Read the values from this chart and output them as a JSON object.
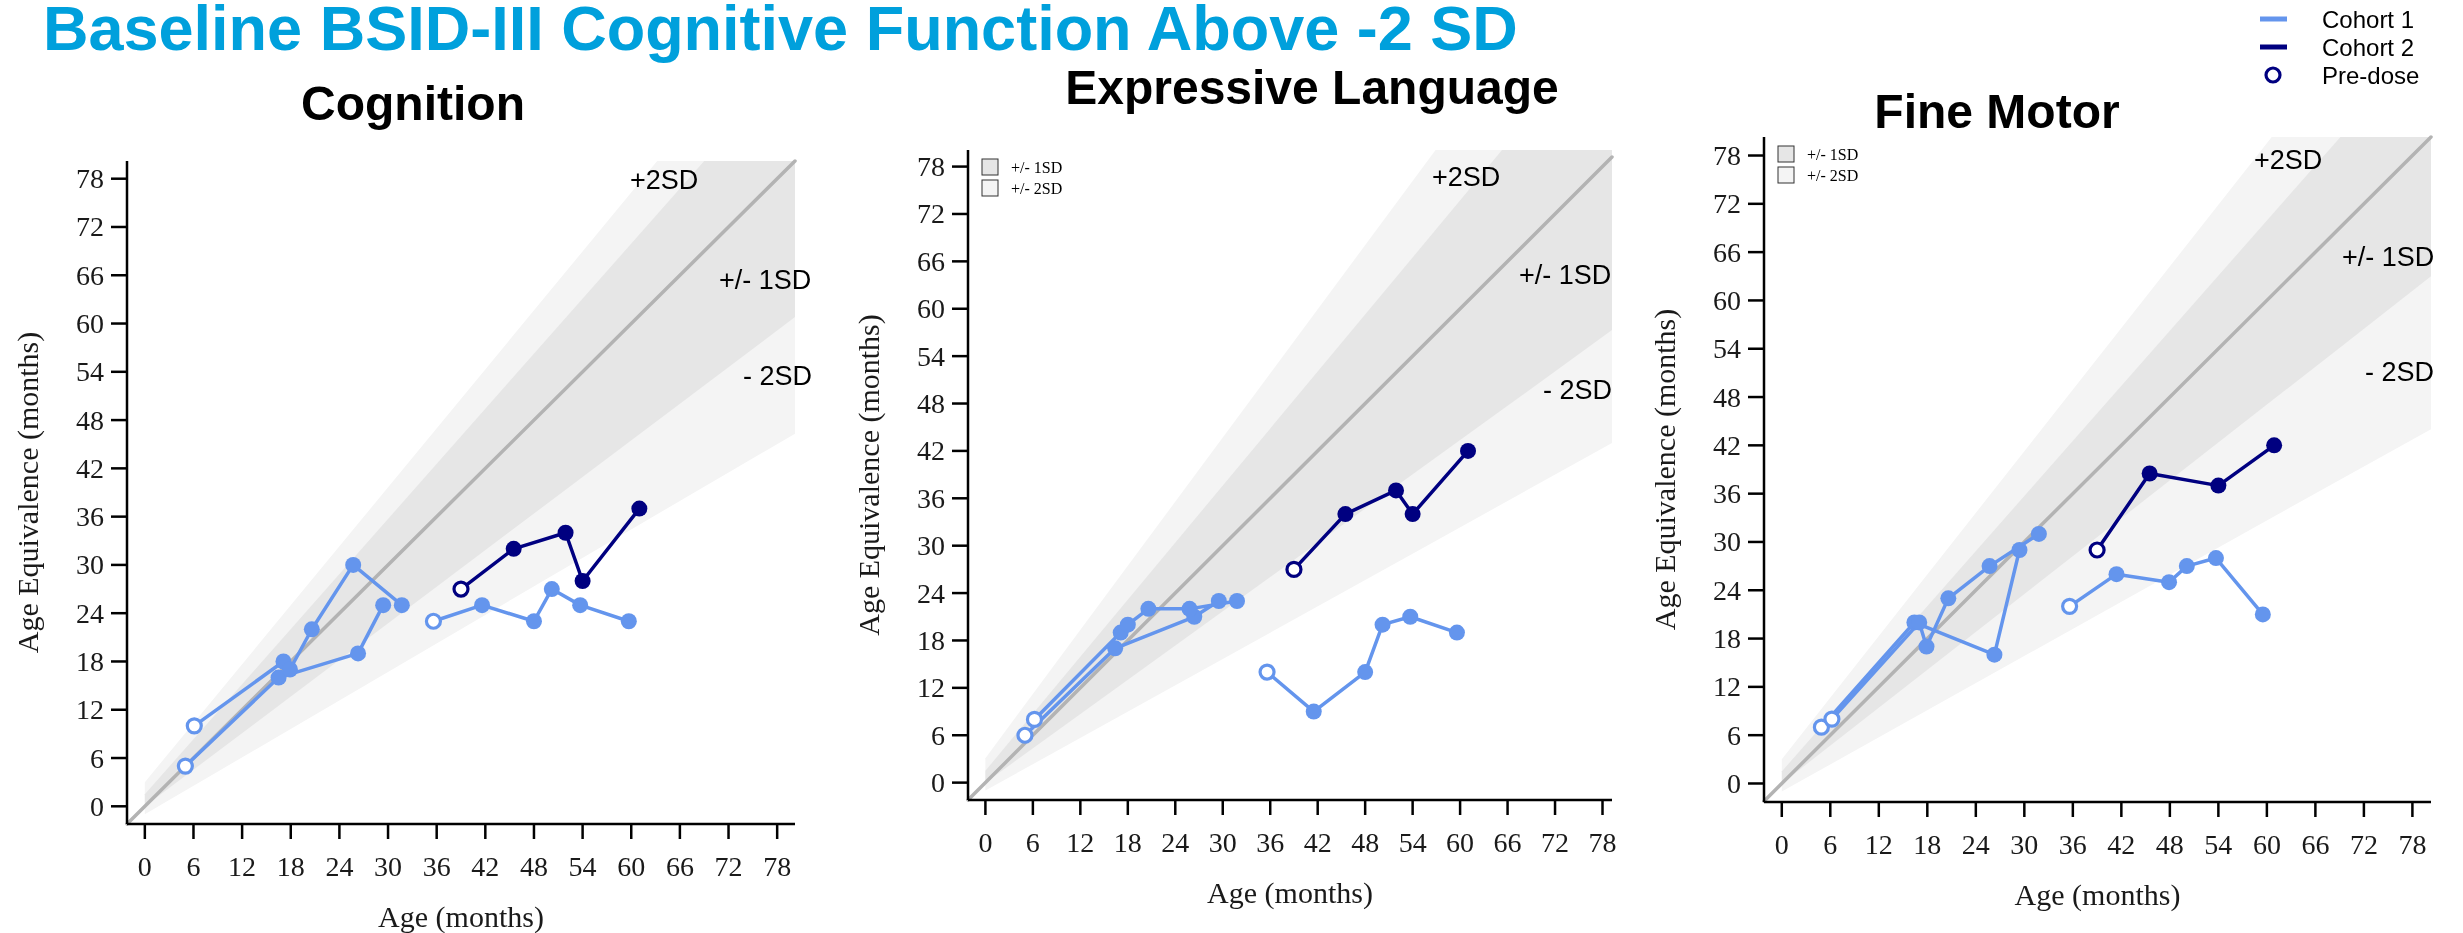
{
  "chart_data": [
    {
      "type": "other",
      "title": "Baseline BSID-III Cognitive Function Above -2 SD"
    },
    {
      "type": "line",
      "title": "Cognition",
      "xlabel": "Age (months)",
      "ylabel": "Age Equivalence (months)",
      "xlim": [
        -2.2,
        80.2
      ],
      "ylim": [
        -2.2,
        80.2
      ],
      "xticks": [
        0,
        6,
        12,
        18,
        24,
        30,
        36,
        42,
        48,
        54,
        60,
        66,
        72,
        78
      ],
      "yticks": [
        0,
        6,
        12,
        18,
        24,
        30,
        36,
        42,
        48,
        54,
        60,
        66,
        72,
        78
      ],
      "series": [
        {
          "type": "line",
          "color": "#e6e6e6",
          "x": [
            0,
            69,
            80.2
          ],
          "values": [
            null,
            null,
            null
          ],
          "lower": [
            0,
            52.3,
            60.8
          ],
          "upper": [
            1.5,
            80.2,
            80.2
          ]
        },
        {
          "type": "line",
          "color": "#f4f4f4",
          "x": [
            0,
            63.2,
            80.2
          ],
          "values": [
            null,
            null,
            null
          ],
          "lower": [
            -1,
            36.3,
            46.3
          ],
          "upper": [
            3,
            80.2,
            80.2
          ]
        },
        {
          "type": "line",
          "color": "#b3b3b3",
          "x": [
            -2.2,
            80.2
          ],
          "values": [
            -2.2,
            80.2
          ]
        },
        {
          "type": "line",
          "color": "#6495ed",
          "x": [
            5,
            16.5,
            26.3,
            29.4
          ],
          "values": [
            5,
            16,
            19,
            25
          ]
        },
        {
          "type": "line",
          "color": "#6495ed",
          "x": [
            6.1,
            17.1,
            17.9,
            20.6,
            25.7,
            31.7
          ],
          "values": [
            10,
            18,
            17,
            22,
            30,
            25
          ]
        },
        {
          "type": "line",
          "color": "#6495ed",
          "x": [
            35.6,
            41.6,
            48,
            50.2,
            53.7,
            59.7
          ],
          "values": [
            23,
            25,
            23,
            27,
            25,
            23
          ]
        },
        {
          "type": "line",
          "color": "#000080",
          "x": [
            39,
            45.5,
            51.9,
            54,
            61
          ],
          "values": [
            27,
            32,
            34,
            28,
            37
          ]
        },
        {
          "type": "scatter",
          "color": "#6495ed",
          "marker": "circle",
          "x": [
            16.5,
            26.3,
            29.4,
            17.1,
            17.9,
            20.6,
            25.7,
            31.7,
            41.6,
            48,
            50.2,
            53.7,
            59.7
          ],
          "values": [
            16,
            19,
            25,
            18,
            17,
            22,
            30,
            25,
            25,
            23,
            27,
            25,
            23
          ]
        },
        {
          "type": "scatter",
          "color": "#000080",
          "marker": "circle",
          "x": [
            45.5,
            51.9,
            54,
            61
          ],
          "values": [
            32,
            34,
            28,
            37
          ]
        },
        {
          "type": "scatter",
          "color": "#000080",
          "marker": "circle",
          "colors": [
            "#ffffff"
          ],
          "x": [
            39
          ],
          "values": [
            27
          ]
        },
        {
          "type": "scatter",
          "color": "#6495ed",
          "marker": "circle",
          "colors": [
            "#ffffff",
            "#ffffff",
            "#ffffff"
          ],
          "x": [
            5,
            6.1,
            35.6
          ],
          "values": [
            5,
            10,
            23
          ]
        }
      ],
      "annotations": [
        "+2SD",
        "+/- 1SD",
        "- 2SD"
      ]
    },
    {
      "type": "line",
      "title": "Expressive Language",
      "xlabel": "Age (months)",
      "ylabel": "Age Equivalence (months)",
      "xlim": [
        -2.2,
        79.2
      ],
      "ylim": [
        -2.2,
        80.1
      ],
      "xticks": [
        0,
        6,
        12,
        18,
        24,
        30,
        36,
        42,
        48,
        54,
        60,
        66,
        72,
        78
      ],
      "yticks": [
        0,
        6,
        12,
        18,
        24,
        30,
        36,
        42,
        48,
        54,
        60,
        66,
        72,
        78
      ],
      "legend": "top left",
      "series": [
        {
          "type": "line",
          "name": "+/- 1SD",
          "color": "#e6e6e6",
          "x": [
            0,
            65.3,
            79.2
          ],
          "values": [
            null,
            null,
            null
          ],
          "lower": [
            0,
            47.2,
            57.3
          ],
          "upper": [
            1.5,
            80.1,
            80.1
          ]
        },
        {
          "type": "line",
          "name": "+/- 2SD",
          "color": "#f4f4f4",
          "x": [
            0,
            56.9,
            79.2
          ],
          "values": [
            null,
            null,
            null
          ],
          "lower": [
            -1,
            30.6,
            43
          ],
          "upper": [
            3.1,
            80.1,
            80.1
          ]
        },
        {
          "type": "line",
          "color": "#b3b3b3",
          "x": [
            -2.2,
            79.2
          ],
          "values": [
            -2.2,
            79.2
          ]
        },
        {
          "type": "line",
          "color": "#6495ed",
          "x": [
            5,
            16.4,
            26.4,
            29.5
          ],
          "values": [
            6,
            17,
            21,
            23
          ]
        },
        {
          "type": "line",
          "color": "#6495ed",
          "x": [
            6.2,
            17.1,
            18,
            20.6,
            25.8,
            31.8
          ],
          "values": [
            8,
            19,
            20,
            22,
            22,
            23
          ]
        },
        {
          "type": "line",
          "color": "#6495ed",
          "x": [
            35.6,
            41.5,
            48,
            50.2,
            53.7,
            59.6
          ],
          "values": [
            14,
            9,
            14,
            20,
            21,
            19
          ]
        },
        {
          "type": "line",
          "color": "#000080",
          "x": [
            39,
            45.5,
            51.9,
            54,
            61
          ],
          "values": [
            27,
            34,
            37,
            34,
            42
          ]
        },
        {
          "type": "scatter",
          "color": "#6495ed",
          "marker": "circle",
          "x": [
            16.4,
            26.4,
            29.5,
            17.1,
            18,
            20.6,
            25.8,
            31.8,
            41.5,
            48,
            50.2,
            53.7,
            59.6
          ],
          "values": [
            17,
            21,
            23,
            19,
            20,
            22,
            22,
            23,
            9,
            14,
            20,
            21,
            19
          ]
        },
        {
          "type": "scatter",
          "color": "#000080",
          "marker": "circle",
          "x": [
            45.5,
            51.9,
            54,
            61
          ],
          "values": [
            34,
            37,
            34,
            42
          ]
        },
        {
          "type": "scatter",
          "color": "#000080",
          "marker": "circle",
          "colors": [
            "#ffffff"
          ],
          "x": [
            39
          ],
          "values": [
            27
          ]
        },
        {
          "type": "scatter",
          "color": "#6495ed",
          "marker": "circle",
          "colors": [
            "#ffffff",
            "#ffffff",
            "#ffffff"
          ],
          "x": [
            5,
            6.2,
            35.6
          ],
          "values": [
            6,
            8,
            14
          ]
        }
      ],
      "annotations": [
        "+2SD",
        "+/- 1SD",
        "- 2SD"
      ]
    },
    {
      "type": "line",
      "title": "Fine Motor",
      "xlabel": "Age (months)",
      "ylabel": "Age Equivalence (months)",
      "xlim": [
        -2.2,
        80.3
      ],
      "ylim": [
        -2.3,
        80.3
      ],
      "xticks": [
        0,
        6,
        12,
        18,
        24,
        30,
        36,
        42,
        48,
        54,
        60,
        66,
        72,
        78
      ],
      "yticks": [
        0,
        6,
        12,
        18,
        24,
        30,
        36,
        42,
        48,
        54,
        60,
        66,
        72,
        78
      ],
      "legend": "top left",
      "series": [
        {
          "type": "line",
          "name": "+/- 1SD",
          "color": "#e6e6e6",
          "x": [
            0,
            69.1,
            80.3
          ],
          "values": [
            null,
            null,
            null
          ],
          "lower": [
            0,
            54.2,
            63
          ],
          "upper": [
            1.5,
            80.3,
            80.3
          ]
        },
        {
          "type": "line",
          "name": "+/- 2SD",
          "color": "#f4f4f4",
          "x": [
            0,
            60.6,
            80.3
          ],
          "values": [
            null,
            null,
            null
          ],
          "lower": [
            -1,
            33,
            44
          ],
          "upper": [
            3,
            80.3,
            80.3
          ]
        },
        {
          "type": "line",
          "color": "#b3b3b3",
          "x": [
            -2.2,
            80.3
          ],
          "values": [
            -2.2,
            80.3
          ]
        },
        {
          "type": "line",
          "name": "Cohort 1",
          "color": "#6495ed",
          "x": [
            4.9,
            16.4,
            26.3,
            29.4
          ],
          "values": [
            7,
            20,
            16,
            29
          ]
        },
        {
          "type": "line",
          "color": "#6495ed",
          "x": [
            6.2,
            17,
            17.9,
            20.6,
            25.7,
            31.8
          ],
          "values": [
            8,
            20,
            17,
            23,
            27,
            31
          ]
        },
        {
          "type": "line",
          "color": "#6495ed",
          "x": [
            35.6,
            41.4,
            47.9,
            50.1,
            53.7,
            59.5
          ],
          "values": [
            22,
            26,
            25,
            27,
            28,
            21
          ]
        },
        {
          "type": "line",
          "name": "Cohort 2",
          "color": "#000080",
          "x": [
            39,
            45.5,
            54,
            60.9
          ],
          "values": [
            29,
            38.5,
            37,
            42
          ]
        },
        {
          "type": "scatter",
          "color": "#6495ed",
          "marker": "circle",
          "x": [
            16.4,
            26.3,
            29.4,
            17,
            17.9,
            20.6,
            25.7,
            31.8,
            41.4,
            47.9,
            50.1,
            53.7,
            59.5
          ],
          "values": [
            20,
            16,
            29,
            20,
            17,
            23,
            27,
            31,
            26,
            25,
            27,
            28,
            21
          ]
        },
        {
          "type": "scatter",
          "color": "#000080",
          "marker": "circle",
          "x": [
            45.5,
            54,
            60.9
          ],
          "values": [
            38.5,
            37,
            42
          ]
        },
        {
          "type": "scatter",
          "name": "Pre-dose",
          "color": "#000080",
          "marker": "circle",
          "colors": [
            "#ffffff"
          ],
          "x": [
            39
          ],
          "values": [
            29
          ]
        },
        {
          "type": "scatter",
          "color": "#6495ed",
          "marker": "circle",
          "colors": [
            "#ffffff",
            "#ffffff",
            "#ffffff"
          ],
          "x": [
            4.9,
            6.2,
            35.6
          ],
          "values": [
            7,
            8,
            22
          ]
        }
      ],
      "annotations": [
        "+2SD",
        "+/- 1SD",
        "- 2SD"
      ]
    }
  ]
}
